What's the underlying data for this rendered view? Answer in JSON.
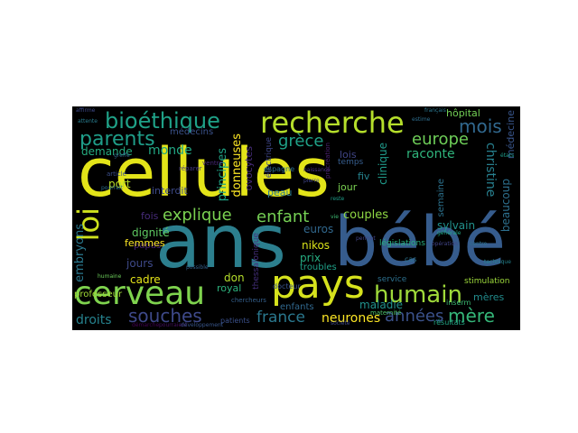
{
  "palette": {
    "yellow": "#e3e419",
    "lime": "#a0da39",
    "green": "#4ac16d",
    "teal": "#1fa187",
    "cyan": "#277f8e",
    "blue": "#365c8d",
    "indigo": "#46327e",
    "purple": "#440154"
  },
  "words": [
    {
      "id": "cellules",
      "text": "cellules",
      "color": "#e3e419"
    },
    {
      "id": "ans",
      "text": "ans",
      "color": "#2c7f8e"
    },
    {
      "id": "bebe",
      "text": "bébé",
      "color": "#365c8d"
    },
    {
      "id": "pays",
      "text": "pays",
      "color": "#d6e21d"
    },
    {
      "id": "cerveau",
      "text": "cerveau",
      "color": "#7fd34e"
    },
    {
      "id": "recherche",
      "text": "recherche",
      "color": "#b5de2b"
    },
    {
      "id": "bioethique",
      "text": "bioéthique",
      "color": "#1fa187"
    },
    {
      "id": "parents",
      "text": "parents",
      "color": "#1f9e89"
    },
    {
      "id": "loi",
      "text": "loi",
      "color": "#cde11d"
    },
    {
      "id": "humain",
      "text": "humain",
      "color": "#9fda3a"
    },
    {
      "id": "souches",
      "text": "souches",
      "color": "#3e4989"
    },
    {
      "id": "explique",
      "text": "explique",
      "color": "#7ad151"
    },
    {
      "id": "enfant",
      "text": "enfant",
      "color": "#75d054"
    },
    {
      "id": "europe",
      "text": "europe",
      "color": "#6ece58"
    },
    {
      "id": "mois",
      "text": "mois",
      "color": "#31688e"
    },
    {
      "id": "annees",
      "text": "années",
      "color": "#3b528b"
    },
    {
      "id": "mere",
      "text": "mère",
      "color": "#35b779"
    },
    {
      "id": "france",
      "text": "france",
      "color": "#2a788e"
    },
    {
      "id": "neurones",
      "text": "neurones",
      "color": "#fde725"
    },
    {
      "id": "droits",
      "text": "droits",
      "color": "#26828e"
    },
    {
      "id": "grece",
      "text": "grèce",
      "color": "#1fa187"
    },
    {
      "id": "monde",
      "text": "monde",
      "color": "#22a884"
    },
    {
      "id": "demande",
      "text": "demande",
      "color": "#26ad81"
    },
    {
      "id": "raconte",
      "text": "raconte",
      "color": "#2fb47c"
    },
    {
      "id": "christine",
      "text": "christine",
      "color": "#277f8e"
    },
    {
      "id": "beaucoup",
      "text": "beaucoup",
      "color": "#2d708e"
    },
    {
      "id": "medecins",
      "text": "médecins",
      "color": "#3b528b"
    },
    {
      "id": "donneuses",
      "text": "donneuses",
      "color": "#fde725"
    },
    {
      "id": "principes",
      "text": "principes",
      "color": "#20a486"
    },
    {
      "id": "ovocytes",
      "text": "ovocytes",
      "color": "#472d7b"
    },
    {
      "id": "port",
      "text": "port",
      "color": "#b8de29"
    },
    {
      "id": "interdit",
      "text": "interdit",
      "color": "#3e4a89"
    },
    {
      "id": "peau",
      "text": "peau",
      "color": "#2a788e"
    },
    {
      "id": "fiv",
      "text": "fiv",
      "color": "#25838e"
    },
    {
      "id": "jour",
      "text": "jour",
      "color": "#7ad151"
    },
    {
      "id": "lois",
      "text": "lois",
      "color": "#404688"
    },
    {
      "id": "clinique",
      "text": "clinique",
      "color": "#1f9a8a"
    },
    {
      "id": "semaine",
      "text": "semaine",
      "color": "#2c728e"
    },
    {
      "id": "medecine",
      "text": "médecine",
      "color": "#39568c"
    },
    {
      "id": "hopital",
      "text": "hôpital",
      "color": "#73d056"
    },
    {
      "id": "couples",
      "text": "couples",
      "color": "#8fd744"
    },
    {
      "id": "sylvain",
      "text": "sylvain",
      "color": "#21918c"
    },
    {
      "id": "fois",
      "text": "fois",
      "color": "#472c7a"
    },
    {
      "id": "dignite",
      "text": "dignité",
      "color": "#5ec962"
    },
    {
      "id": "papas",
      "text": "papas",
      "color": "#482374"
    },
    {
      "id": "femmes",
      "text": "femmes",
      "color": "#fde725"
    },
    {
      "id": "euros",
      "text": "euros",
      "color": "#31688e"
    },
    {
      "id": "embryons",
      "text": "embryons",
      "color": "#2a788e"
    },
    {
      "id": "jours",
      "text": "jours",
      "color": "#3e4989"
    },
    {
      "id": "cadre",
      "text": "cadre",
      "color": "#e5e419"
    },
    {
      "id": "don",
      "text": "don",
      "color": "#b5de2b"
    },
    {
      "id": "nikos",
      "text": "nikos",
      "color": "#d8e219"
    },
    {
      "id": "prix",
      "text": "prix",
      "color": "#26ad81"
    },
    {
      "id": "troubles",
      "text": "troubles",
      "color": "#1fa188"
    },
    {
      "id": "royal",
      "text": "royal",
      "color": "#2db27d"
    },
    {
      "id": "enfants",
      "text": "enfants",
      "color": "#31688e"
    },
    {
      "id": "maladie",
      "text": "maladie",
      "color": "#21918c"
    },
    {
      "id": "meres",
      "text": "mères",
      "color": "#228c8d"
    },
    {
      "id": "professeur",
      "text": "professeur",
      "color": "#a2da37"
    },
    {
      "id": "service",
      "text": "service",
      "color": "#2d708e"
    },
    {
      "id": "stimulation",
      "text": "stimulation",
      "color": "#9dd93b"
    },
    {
      "id": "legislations",
      "text": "législations",
      "color": "#29af7f"
    },
    {
      "id": "thessalonique",
      "text": "thessalonique",
      "color": "#46307e"
    },
    {
      "id": "electrique",
      "text": "électrique",
      "color": "#3f4788"
    },
    {
      "id": "espagne",
      "text": "espagne",
      "color": "#2e6d8e"
    },
    {
      "id": "temps",
      "text": "temps",
      "color": "#365d8d"
    },
    {
      "id": "docteur",
      "text": "docteur",
      "color": "#3a548c"
    },
    {
      "id": "patients",
      "text": "patients",
      "color": "#3b518b"
    },
    {
      "id": "maternite",
      "text": "maternité",
      "color": "#4ec36b"
    },
    {
      "id": "resultats",
      "text": "résultats",
      "color": "#22a785"
    },
    {
      "id": "inserm",
      "text": "inserm",
      "color": "#3dbc74"
    },
    {
      "id": "cas",
      "text": "cas",
      "color": "#2c728e"
    },
    {
      "id": "ventre",
      "text": "ventre",
      "color": "#482878"
    },
    {
      "id": "reparer",
      "text": "réparer",
      "color": "#443983"
    },
    {
      "id": "article",
      "text": "article",
      "color": "#3c4f8a"
    },
    {
      "id": "humaine",
      "text": "humaine",
      "color": "#6ccd5a"
    },
    {
      "id": "pourrait",
      "text": "pourrait",
      "color": "#2d708e"
    },
    {
      "id": "affirme",
      "text": "affirme",
      "color": "#3e4a89"
    },
    {
      "id": "attente",
      "text": "attente",
      "color": "#287c8e"
    },
    {
      "id": "francais",
      "text": "français",
      "color": "#2a768e"
    },
    {
      "id": "estime",
      "text": "estime",
      "color": "#2e6e8e"
    },
    {
      "id": "operation",
      "text": "opération",
      "color": "#414487"
    },
    {
      "id": "technique",
      "text": "technique",
      "color": "#25848e"
    },
    {
      "id": "societe",
      "text": "société",
      "color": "#3f4889"
    },
    {
      "id": "chercheurs",
      "text": "chercheurs",
      "color": "#35608d"
    },
    {
      "id": "generale",
      "text": "générale",
      "color": "#22a785"
    },
    {
      "id": "demarche",
      "text": "démarche",
      "color": "#440154"
    },
    {
      "id": "pourraient",
      "text": "pourraient",
      "color": "#471063"
    },
    {
      "id": "developpement",
      "text": "développement",
      "color": "#39568c"
    },
    {
      "id": "centre",
      "text": "centre",
      "color": "#2c728e"
    },
    {
      "id": "vie",
      "text": "vie",
      "color": "#3dbc74"
    },
    {
      "id": "reste",
      "text": "reste",
      "color": "#1f9e89"
    },
    {
      "id": "naissance",
      "text": "naissance",
      "color": "#46337f"
    },
    {
      "id": "procreation",
      "text": "procréation",
      "color": "#4a2170"
    },
    {
      "id": "possible",
      "text": "possible",
      "color": "#34618d"
    },
    {
      "id": "pierre",
      "text": "pierre",
      "color": "#404688"
    },
    {
      "id": "etats",
      "text": "états",
      "color": "#1e9b8a"
    },
    {
      "id": "greffe",
      "text": "greffe",
      "color": "#31688e"
    },
    {
      "id": "permet",
      "text": "permet",
      "color": "#414487"
    }
  ]
}
